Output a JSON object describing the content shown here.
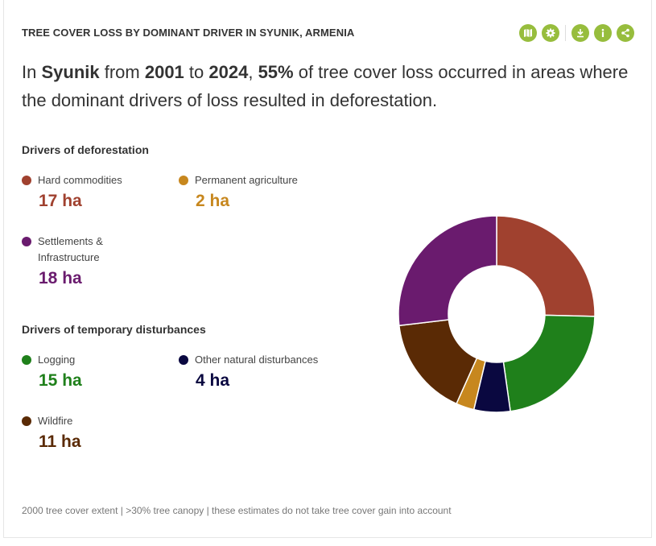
{
  "widget": {
    "title": "TREE COVER LOSS BY DOMINANT DRIVER IN SYUNIK, ARMENIA",
    "toolbar": [
      {
        "name": "map-icon",
        "color": "#97bd3d"
      },
      {
        "name": "gear-icon",
        "color": "#97bd3d"
      },
      {
        "name": "download-icon",
        "color": "#97bd3d"
      },
      {
        "name": "info-icon",
        "color": "#97bd3d"
      },
      {
        "name": "share-icon",
        "color": "#97bd3d"
      }
    ]
  },
  "sentence": {
    "p1": "In ",
    "location": "Syunik",
    "p2": " from ",
    "start_year": "2001",
    "p3": " to ",
    "end_year": "2024",
    "p4": ", ",
    "percent": "55%",
    "p5": " of tree cover loss occurred in areas where the dominant drivers of loss resulted in deforestation."
  },
  "legend": {
    "deforestation_title": "Drivers of deforestation",
    "temporary_title": "Drivers of temporary disturbances",
    "items": [
      {
        "label": "Hard commodities",
        "value": "17 ha",
        "color": "#a0412f"
      },
      {
        "label": "Permanent agriculture",
        "value": "2 ha",
        "color": "#c7871e"
      },
      {
        "label": "Settlements & Infrastructure",
        "value": "18 ha",
        "color": "#6a1b6e"
      },
      {
        "label": "Logging",
        "value": "15 ha",
        "color": "#1f801b"
      },
      {
        "label": "Other natural disturbances",
        "value": "4 ha",
        "color": "#0a0840"
      },
      {
        "label": "Wildfire",
        "value": "11 ha",
        "color": "#5a2a05"
      }
    ]
  },
  "chart_data": {
    "type": "pie",
    "donut": true,
    "start": "top",
    "direction": "clockwise",
    "slices": [
      {
        "name": "Hard commodities",
        "value": 17,
        "color": "#a0412f"
      },
      {
        "name": "Logging",
        "value": 15,
        "color": "#1f801b"
      },
      {
        "name": "Other natural disturbances",
        "value": 4,
        "color": "#0a0840"
      },
      {
        "name": "Permanent agriculture",
        "value": 2,
        "color": "#c7871e"
      },
      {
        "name": "Wildfire",
        "value": 11,
        "color": "#5a2a05"
      },
      {
        "name": "Settlements & Infrastructure",
        "value": 18,
        "color": "#6a1b6e"
      }
    ]
  },
  "footer": "2000 tree cover extent | >30% tree canopy | these estimates do not take tree cover gain into account"
}
